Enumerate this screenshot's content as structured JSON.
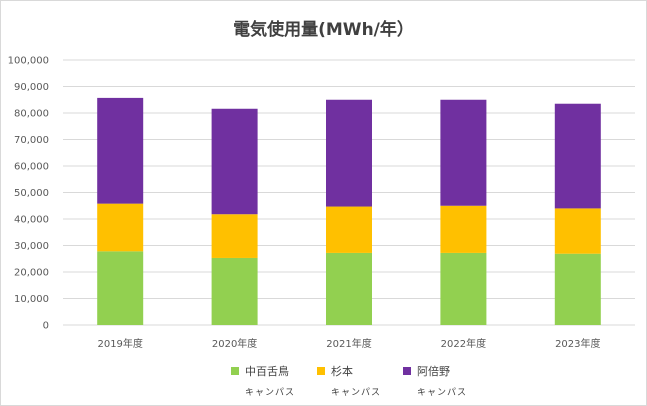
{
  "chart_data": {
    "type": "bar",
    "stacked": true,
    "title": "電気使用量(MWh/年）",
    "categories": [
      "2019年度",
      "2020年度",
      "2021年度",
      "2022年度",
      "2023年度"
    ],
    "y_ticks": [
      "0",
      "10,000",
      "20,000",
      "30,000",
      "40,000",
      "50,000",
      "60,000",
      "70,000",
      "80,000",
      "90,000",
      "100,000"
    ],
    "ylim": [
      0,
      100000
    ],
    "grid": true,
    "legend_position": "bottom",
    "series": [
      {
        "name": "中百舌鳥",
        "sub": "キャンパス",
        "color": "#92d050",
        "values": [
          27800,
          25300,
          27200,
          27200,
          26900
        ]
      },
      {
        "name": "杉本",
        "sub": "キャンパス",
        "color": "#ffc000",
        "values": [
          18000,
          16500,
          17500,
          17800,
          17100
        ]
      },
      {
        "name": "阿倍野",
        "sub": "キャンパス",
        "color": "#7030a0",
        "values": [
          39900,
          39800,
          40300,
          40000,
          39500
        ]
      }
    ]
  }
}
